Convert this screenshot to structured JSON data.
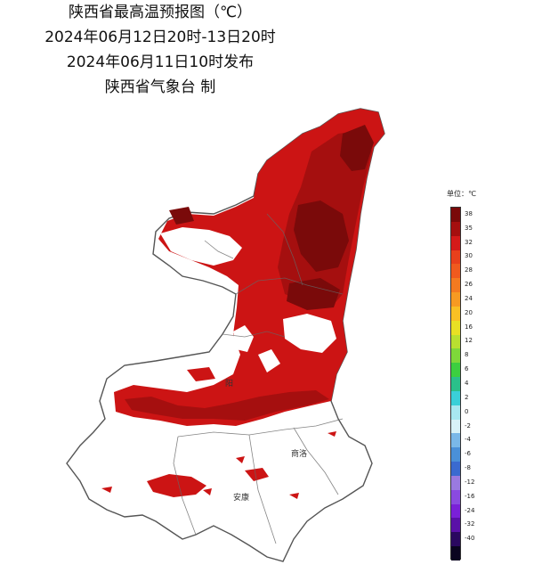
{
  "title": {
    "line1": "陕西省最高温预报图（℃）",
    "line2": "2024年06月12日20时-13日20时",
    "line3": "2024年06月11日10时发布",
    "line4": "陕西省气象台 制"
  },
  "legend": {
    "unit": "单位：℃",
    "entries": [
      {
        "label": "38",
        "color": "#7a0a0a"
      },
      {
        "label": "35",
        "color": "#a50f0f"
      },
      {
        "label": "32",
        "color": "#d41a1a"
      },
      {
        "label": "30",
        "color": "#e8401c"
      },
      {
        "label": "28",
        "color": "#f05a1e"
      },
      {
        "label": "26",
        "color": "#f47a20"
      },
      {
        "label": "24",
        "color": "#f79a22"
      },
      {
        "label": "20",
        "color": "#f9c024"
      },
      {
        "label": "16",
        "color": "#e8e024"
      },
      {
        "label": "12",
        "color": "#b8e030"
      },
      {
        "label": "8",
        "color": "#7ed83a"
      },
      {
        "label": "6",
        "color": "#3ccf40"
      },
      {
        "label": "4",
        "color": "#2ac08a"
      },
      {
        "label": "2",
        "color": "#3ad0d8"
      },
      {
        "label": "0",
        "color": "#a8e8f0"
      },
      {
        "label": "-2",
        "color": "#d8f2f8"
      },
      {
        "label": "-4",
        "color": "#7ab8e8"
      },
      {
        "label": "-6",
        "color": "#4a90d8"
      },
      {
        "label": "-8",
        "color": "#3a6ad0"
      },
      {
        "label": "-12",
        "color": "#9a7ae0"
      },
      {
        "label": "-16",
        "color": "#8a4ae0"
      },
      {
        "label": "-24",
        "color": "#7a20d8"
      },
      {
        "label": "-32",
        "color": "#5a10a8"
      },
      {
        "label": "-40",
        "color": "#2a0860"
      },
      {
        "label": "",
        "color": "#0a0420"
      }
    ]
  },
  "cities": {
    "shangluo": "商洛",
    "ankang": "安康",
    "xianyang_fragment": "阳"
  },
  "colors": {
    "hot": "#cc1414",
    "hotter": "#a50f0f",
    "hottest": "#7a0a0a",
    "boundary": "#555555"
  }
}
